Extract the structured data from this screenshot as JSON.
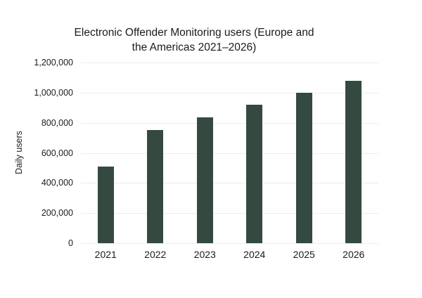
{
  "title": {
    "line1": "Electronic Offender Monitoring users (Europe and",
    "line2": "the Americas 2021–2026)"
  },
  "chart_data": {
    "type": "bar",
    "title": "Electronic Offender Monitoring users (Europe and the Americas 2021–2026)",
    "categories": [
      "2021",
      "2022",
      "2023",
      "2024",
      "2025",
      "2026"
    ],
    "values": [
      510000,
      750000,
      835000,
      920000,
      1000000,
      1080000
    ],
    "xlabel": "",
    "ylabel": "Daily users",
    "ylim": [
      0,
      1200000
    ],
    "ytick_step": 200000,
    "yticks": [
      "0",
      "200,000",
      "400,000",
      "600,000",
      "800,000",
      "1,000,000",
      "1,200,000"
    ],
    "grid": true,
    "legend": false,
    "bar_color": "#344a40",
    "grid_color": "#ededed",
    "text_color": "#1b1b1b",
    "background_color": "#ffffff"
  }
}
